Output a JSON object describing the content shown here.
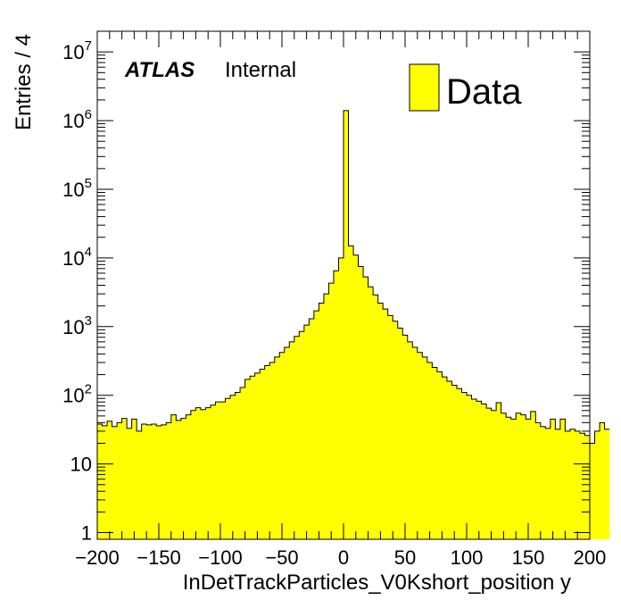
{
  "chart_data": {
    "type": "bar",
    "xlabel": "InDetTrackParticles_V0Kshort_position y",
    "ylabel": "Entries / 4",
    "xlim": [
      -200,
      200
    ],
    "ylim": [
      0.8,
      20000000
    ],
    "yscale": "log",
    "bin_width": 4,
    "x_ticks": [
      -200,
      -150,
      -100,
      -50,
      0,
      50,
      100,
      150,
      200
    ],
    "x_tick_labels": [
      "−200",
      "−150",
      "−100",
      "−50",
      "0",
      "50",
      "100",
      "150",
      "200"
    ],
    "y_ticks": [
      1,
      10,
      100,
      1000,
      10000,
      100000,
      1000000,
      10000000
    ],
    "y_tick_labels": [
      {
        "base": "1",
        "exp": ""
      },
      {
        "base": "10",
        "exp": ""
      },
      {
        "base": "10",
        "exp": "2"
      },
      {
        "base": "10",
        "exp": "3"
      },
      {
        "base": "10",
        "exp": "4"
      },
      {
        "base": "10",
        "exp": "5"
      },
      {
        "base": "10",
        "exp": "6"
      },
      {
        "base": "10",
        "exp": "7"
      }
    ],
    "bin_edges_start": -200,
    "values": [
      38,
      36,
      42,
      35,
      40,
      46,
      33,
      45,
      30,
      38,
      37,
      38,
      36,
      37,
      40,
      52,
      43,
      46,
      52,
      60,
      66,
      62,
      66,
      72,
      80,
      80,
      90,
      100,
      110,
      130,
      170,
      190,
      210,
      240,
      270,
      300,
      360,
      420,
      500,
      600,
      720,
      850,
      1050,
      1300,
      1700,
      2200,
      3000,
      4300,
      6500,
      10000,
      1400000,
      15000,
      11000,
      7500,
      5300,
      3800,
      2900,
      2200,
      1800,
      1450,
      1200,
      950,
      750,
      600,
      500,
      420,
      360,
      300,
      255,
      220,
      185,
      160,
      140,
      125,
      110,
      100,
      88,
      82,
      75,
      65,
      60,
      78,
      55,
      48,
      45,
      55,
      52,
      45,
      58,
      40,
      35,
      33,
      45,
      32,
      45,
      30,
      32,
      30,
      28,
      26,
      20,
      30,
      40,
      32
    ],
    "series": [
      {
        "name": "Data",
        "color": "#ffff00"
      }
    ]
  },
  "labels": {
    "atlas": "ATLAS",
    "internal": "Internal",
    "legend_entry": "Data"
  },
  "colors": {
    "fill": "#ffff00",
    "line": "#000000"
  }
}
